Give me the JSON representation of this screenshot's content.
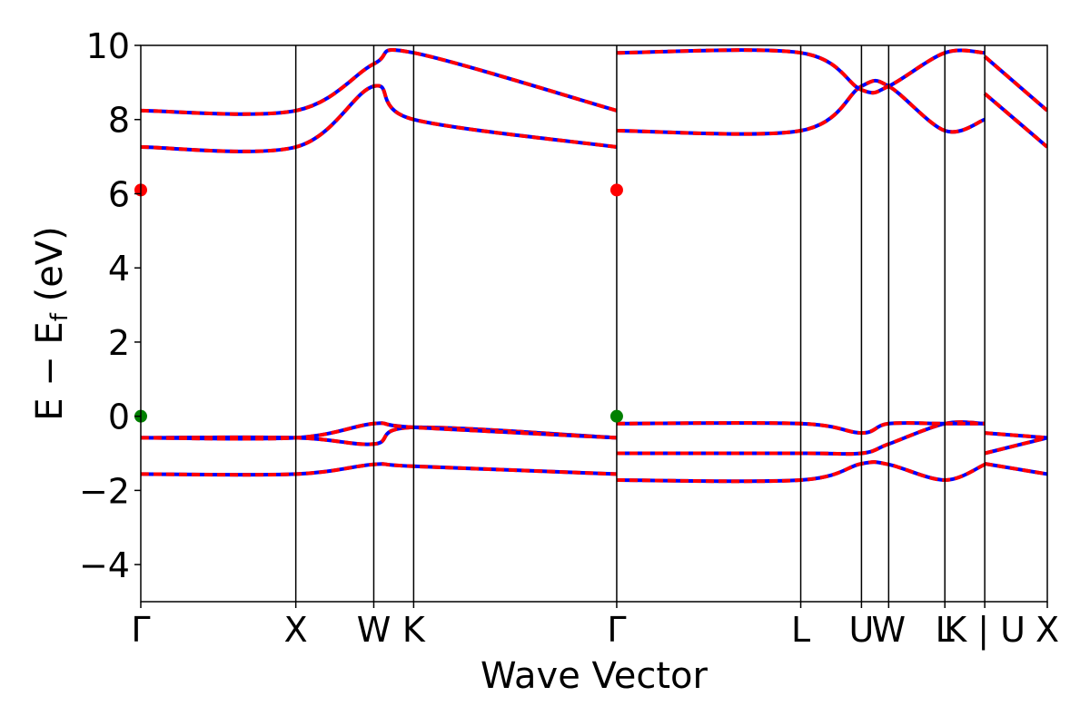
{
  "chart_data": {
    "type": "line",
    "xlabel": "Wave Vector",
    "ylabel_main": "E − E",
    "ylabel_sub": "f",
    "ylabel_tail": " (eV)",
    "xlim": [
      0,
      1
    ],
    "ylim": [
      -5,
      10
    ],
    "yticks": [
      -4,
      -2,
      0,
      2,
      4,
      6,
      8,
      10
    ],
    "grid": false,
    "legend": "none",
    "colors": {
      "band": "#0000ff",
      "band_overlay": "#ff0000",
      "cbm_marker": "#ff0000",
      "vbm_marker": "#008000",
      "kpath_line": "#000000"
    },
    "kpoints": [
      {
        "label": "Γ",
        "x": 0.0
      },
      {
        "label": "X",
        "x": 0.171
      },
      {
        "label": "W",
        "x": 0.257
      },
      {
        "label": "K",
        "x": 0.301
      },
      {
        "label": "Γ",
        "x": 0.525
      },
      {
        "label": "L",
        "x": 0.728
      },
      {
        "label": "U",
        "x": 0.795
      },
      {
        "label": "W",
        "x": 0.825
      },
      {
        "label": "L",
        "x": 0.887
      },
      {
        "label": "K | U",
        "x": 0.931
      },
      {
        "label": "X",
        "x": 1.0
      }
    ],
    "markers": [
      {
        "kind": "cbm",
        "x": 0.0,
        "y": 6.1
      },
      {
        "kind": "cbm",
        "x": 0.525,
        "y": 6.1
      },
      {
        "kind": "vbm",
        "x": 0.0,
        "y": 0.0
      },
      {
        "kind": "vbm",
        "x": 0.525,
        "y": 0.0
      }
    ],
    "series": [
      {
        "segments": [
          [
            [
              0,
              -1.56
            ],
            [
              0.171,
              -1.56
            ],
            [
              0.257,
              -1.3
            ],
            [
              0.301,
              -1.35
            ],
            [
              0.525,
              -1.56
            ]
          ],
          [
            [
              0.525,
              -1.72
            ],
            [
              0.728,
              -1.72
            ],
            [
              0.795,
              -1.28
            ],
            [
              0.825,
              -1.3
            ],
            [
              0.887,
              -1.72
            ],
            [
              0.931,
              -1.3
            ]
          ],
          [
            [
              0.931,
              -1.28
            ],
            [
              1.0,
              -1.56
            ]
          ]
        ]
      },
      {
        "segments": [
          [
            [
              0,
              -0.58
            ],
            [
              0.171,
              -0.58
            ],
            [
              0.257,
              -0.75
            ],
            [
              0.301,
              -0.3
            ],
            [
              0.525,
              -0.58
            ]
          ],
          [
            [
              0.525,
              -1.0
            ],
            [
              0.728,
              -1.0
            ],
            [
              0.795,
              -1.0
            ],
            [
              0.825,
              -0.75
            ],
            [
              0.887,
              -0.2
            ],
            [
              0.931,
              -0.2
            ]
          ],
          [
            [
              0.931,
              -1.0
            ],
            [
              1.0,
              -0.58
            ]
          ]
        ]
      },
      {
        "segments": [
          [
            [
              0,
              -0.58
            ],
            [
              0.171,
              -0.58
            ],
            [
              0.257,
              -0.2
            ],
            [
              0.301,
              -0.3
            ],
            [
              0.525,
              -0.58
            ]
          ],
          [
            [
              0.525,
              -0.2
            ],
            [
              0.728,
              -0.2
            ],
            [
              0.795,
              -0.45
            ],
            [
              0.825,
              -0.2
            ],
            [
              0.887,
              -0.2
            ],
            [
              0.931,
              -0.2
            ]
          ],
          [
            [
              0.931,
              -0.45
            ],
            [
              1.0,
              -0.58
            ]
          ]
        ]
      },
      {
        "segments": [
          [
            [
              0,
              7.26
            ],
            [
              0.171,
              7.26
            ],
            [
              0.257,
              8.9
            ],
            [
              0.301,
              8.0
            ],
            [
              0.525,
              7.26
            ]
          ],
          [
            [
              0.525,
              7.7
            ],
            [
              0.728,
              7.7
            ],
            [
              0.795,
              8.9
            ],
            [
              0.825,
              8.9
            ],
            [
              0.887,
              7.7
            ],
            [
              0.931,
              8.0
            ]
          ],
          [
            [
              0.931,
              8.7
            ],
            [
              1.0,
              7.26
            ]
          ]
        ]
      },
      {
        "segments": [
          [
            [
              0,
              8.24
            ],
            [
              0.171,
              8.24
            ],
            [
              0.257,
              9.5
            ],
            [
              0.301,
              9.8
            ],
            [
              0.525,
              8.24
            ]
          ],
          [
            [
              0.525,
              9.8
            ],
            [
              0.728,
              9.8
            ],
            [
              0.795,
              8.8
            ],
            [
              0.825,
              8.9
            ],
            [
              0.887,
              9.8
            ],
            [
              0.931,
              9.8
            ]
          ],
          [
            [
              0.931,
              9.7
            ],
            [
              1.0,
              8.24
            ]
          ]
        ]
      }
    ]
  }
}
